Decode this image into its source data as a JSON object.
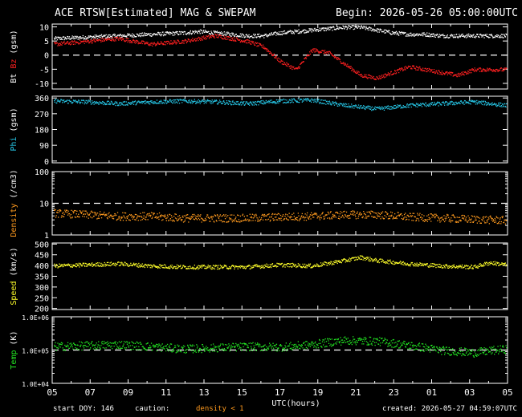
{
  "header": {
    "title": "ACE RTSW[Estimated] MAG & SWEPAM",
    "begin": "Begin: 2026-05-26 05:00:00UTC"
  },
  "footer": {
    "start_doy": "start DOY: 146",
    "caution": "caution:",
    "density_note": "density < 1",
    "created": "created: 2026-05-27 04:59:07UTC"
  },
  "colors": {
    "bt": "#ffffff",
    "bz": "#ff2020",
    "phi": "#26c6e6",
    "density": "#ff9a1e",
    "speed": "#ffff2a",
    "temp": "#22e622",
    "axes": "#ffffff"
  },
  "chart_data": {
    "type": "scatter",
    "x_axis": {
      "label": "UTC(hours)",
      "ticks": [
        "05",
        "07",
        "09",
        "11",
        "13",
        "15",
        "17",
        "19",
        "21",
        "23",
        "01",
        "03",
        "05"
      ],
      "range_hours": [
        0,
        24
      ]
    },
    "panels": [
      {
        "id": "mag",
        "ylabel_parts": [
          {
            "text": "Bt",
            "color": "#ffffff"
          },
          {
            "text": "Bz",
            "color": "#ff2020"
          },
          {
            "text": "(gsm)",
            "color": "#ffffff"
          }
        ],
        "scale": "linear",
        "ylim": [
          -12,
          11
        ],
        "yticks": [
          "10",
          "5",
          "0",
          "-5",
          "-10"
        ],
        "ytick_values": [
          10,
          5,
          0,
          -5,
          -10
        ],
        "dashed_line": 0,
        "series": [
          {
            "name": "Bt",
            "color": "#ffffff",
            "points": [
              [
                0,
                6
              ],
              [
                2,
                6.5
              ],
              [
                4,
                7
              ],
              [
                6,
                7.5
              ],
              [
                8,
                8
              ],
              [
                9,
                8.5
              ],
              [
                10,
                8
              ],
              [
                11,
                7.5
              ],
              [
                12,
                7
              ],
              [
                13,
                7
              ],
              [
                14,
                8
              ],
              [
                16,
                9
              ],
              [
                18,
                10
              ],
              [
                19,
                10
              ],
              [
                20,
                9
              ],
              [
                21,
                8
              ],
              [
                22,
                7.5
              ],
              [
                23,
                7.5
              ],
              [
                24,
                7
              ],
              [
                26,
                7
              ]
            ]
          },
          {
            "name": "Bz",
            "color": "#ff2020",
            "points": [
              [
                0,
                4
              ],
              [
                2,
                5
              ],
              [
                4,
                6
              ],
              [
                6,
                4
              ],
              [
                8,
                5
              ],
              [
                9,
                6
              ],
              [
                10,
                7
              ],
              [
                11,
                6
              ],
              [
                12,
                5
              ],
              [
                13,
                3
              ],
              [
                14,
                -2
              ],
              [
                15,
                -5
              ],
              [
                16,
                2
              ],
              [
                17,
                1
              ],
              [
                18,
                -3
              ],
              [
                19,
                -7
              ],
              [
                20,
                -8
              ],
              [
                21,
                -6
              ],
              [
                22,
                -4
              ],
              [
                23,
                -5
              ],
              [
                24,
                -6
              ],
              [
                25,
                -7
              ],
              [
                26,
                -5
              ]
            ]
          }
        ]
      },
      {
        "id": "phi",
        "ylabel_parts": [
          {
            "text": "Phi",
            "color": "#26c6e6"
          },
          {
            "text": "(gsm)",
            "color": "#ffffff"
          }
        ],
        "scale": "linear",
        "ylim": [
          -10,
          370
        ],
        "yticks": [
          "360",
          "270",
          "180",
          "90",
          "0"
        ],
        "ytick_values": [
          360,
          270,
          180,
          90,
          0
        ],
        "series": [
          {
            "name": "Phi",
            "color": "#26c6e6",
            "points": [
              [
                0,
                345
              ],
              [
                2,
                340
              ],
              [
                4,
                330
              ],
              [
                6,
                340
              ],
              [
                8,
                345
              ],
              [
                10,
                340
              ],
              [
                12,
                330
              ],
              [
                14,
                345
              ],
              [
                16,
                350
              ],
              [
                18,
                320
              ],
              [
                20,
                300
              ],
              [
                22,
                320
              ],
              [
                24,
                330
              ],
              [
                26,
                340
              ],
              [
                28,
                320
              ]
            ]
          }
        ]
      },
      {
        "id": "density",
        "ylabel_parts": [
          {
            "text": "Density",
            "color": "#ff9a1e"
          },
          {
            "text": "(/cm3)",
            "color": "#ffffff"
          }
        ],
        "scale": "log",
        "ylim": [
          1,
          100
        ],
        "yticks": [
          "100",
          "10",
          "1"
        ],
        "ytick_values": [
          100,
          10,
          1
        ],
        "dashed_line": 10,
        "series": [
          {
            "name": "Density",
            "color": "#ff9a1e",
            "points": [
              [
                0,
                5
              ],
              [
                2,
                4.5
              ],
              [
                4,
                4
              ],
              [
                6,
                4
              ],
              [
                8,
                3.5
              ],
              [
                10,
                3.5
              ],
              [
                12,
                3.5
              ],
              [
                14,
                3.8
              ],
              [
                16,
                4
              ],
              [
                18,
                4.5
              ],
              [
                20,
                4.5
              ],
              [
                22,
                3.8
              ],
              [
                24,
                3.5
              ],
              [
                26,
                3.2
              ],
              [
                28,
                3
              ]
            ]
          }
        ]
      },
      {
        "id": "speed",
        "ylabel_parts": [
          {
            "text": "Speed",
            "color": "#ffff2a"
          },
          {
            "text": "(km/s)",
            "color": "#ffffff"
          }
        ],
        "scale": "linear",
        "ylim": [
          195,
          505
        ],
        "yticks": [
          "500",
          "450",
          "400",
          "350",
          "300",
          "250",
          "200"
        ],
        "ytick_values": [
          500,
          450,
          400,
          350,
          300,
          250,
          200
        ],
        "series": [
          {
            "name": "Speed",
            "color": "#ffff2a",
            "points": [
              [
                0,
                400
              ],
              [
                2,
                405
              ],
              [
                4,
                410
              ],
              [
                6,
                400
              ],
              [
                8,
                395
              ],
              [
                10,
                395
              ],
              [
                12,
                395
              ],
              [
                14,
                405
              ],
              [
                16,
                400
              ],
              [
                18,
                425
              ],
              [
                19,
                440
              ],
              [
                20,
                425
              ],
              [
                22,
                410
              ],
              [
                24,
                400
              ],
              [
                26,
                395
              ],
              [
                27,
                415
              ],
              [
                28,
                405
              ]
            ]
          }
        ]
      },
      {
        "id": "temp",
        "ylabel_parts": [
          {
            "text": "Temp",
            "color": "#22e622"
          },
          {
            "text": "(K)",
            "color": "#ffffff"
          }
        ],
        "scale": "log",
        "ylim": [
          10000,
          1000000
        ],
        "yticks": [
          "1.0E+06",
          "1.0E+05",
          "1.0E+04"
        ],
        "ytick_values": [
          1000000,
          100000,
          10000
        ],
        "dashed_line": 100000,
        "series": [
          {
            "name": "Temp",
            "color": "#22e622",
            "points": [
              [
                0,
                130000
              ],
              [
                2,
                140000
              ],
              [
                4,
                150000
              ],
              [
                6,
                130000
              ],
              [
                8,
                110000
              ],
              [
                10,
                120000
              ],
              [
                12,
                130000
              ],
              [
                14,
                125000
              ],
              [
                16,
                150000
              ],
              [
                18,
                200000
              ],
              [
                20,
                190000
              ],
              [
                22,
                140000
              ],
              [
                24,
                100000
              ],
              [
                26,
                85000
              ],
              [
                28,
                110000
              ]
            ]
          }
        ]
      }
    ]
  }
}
